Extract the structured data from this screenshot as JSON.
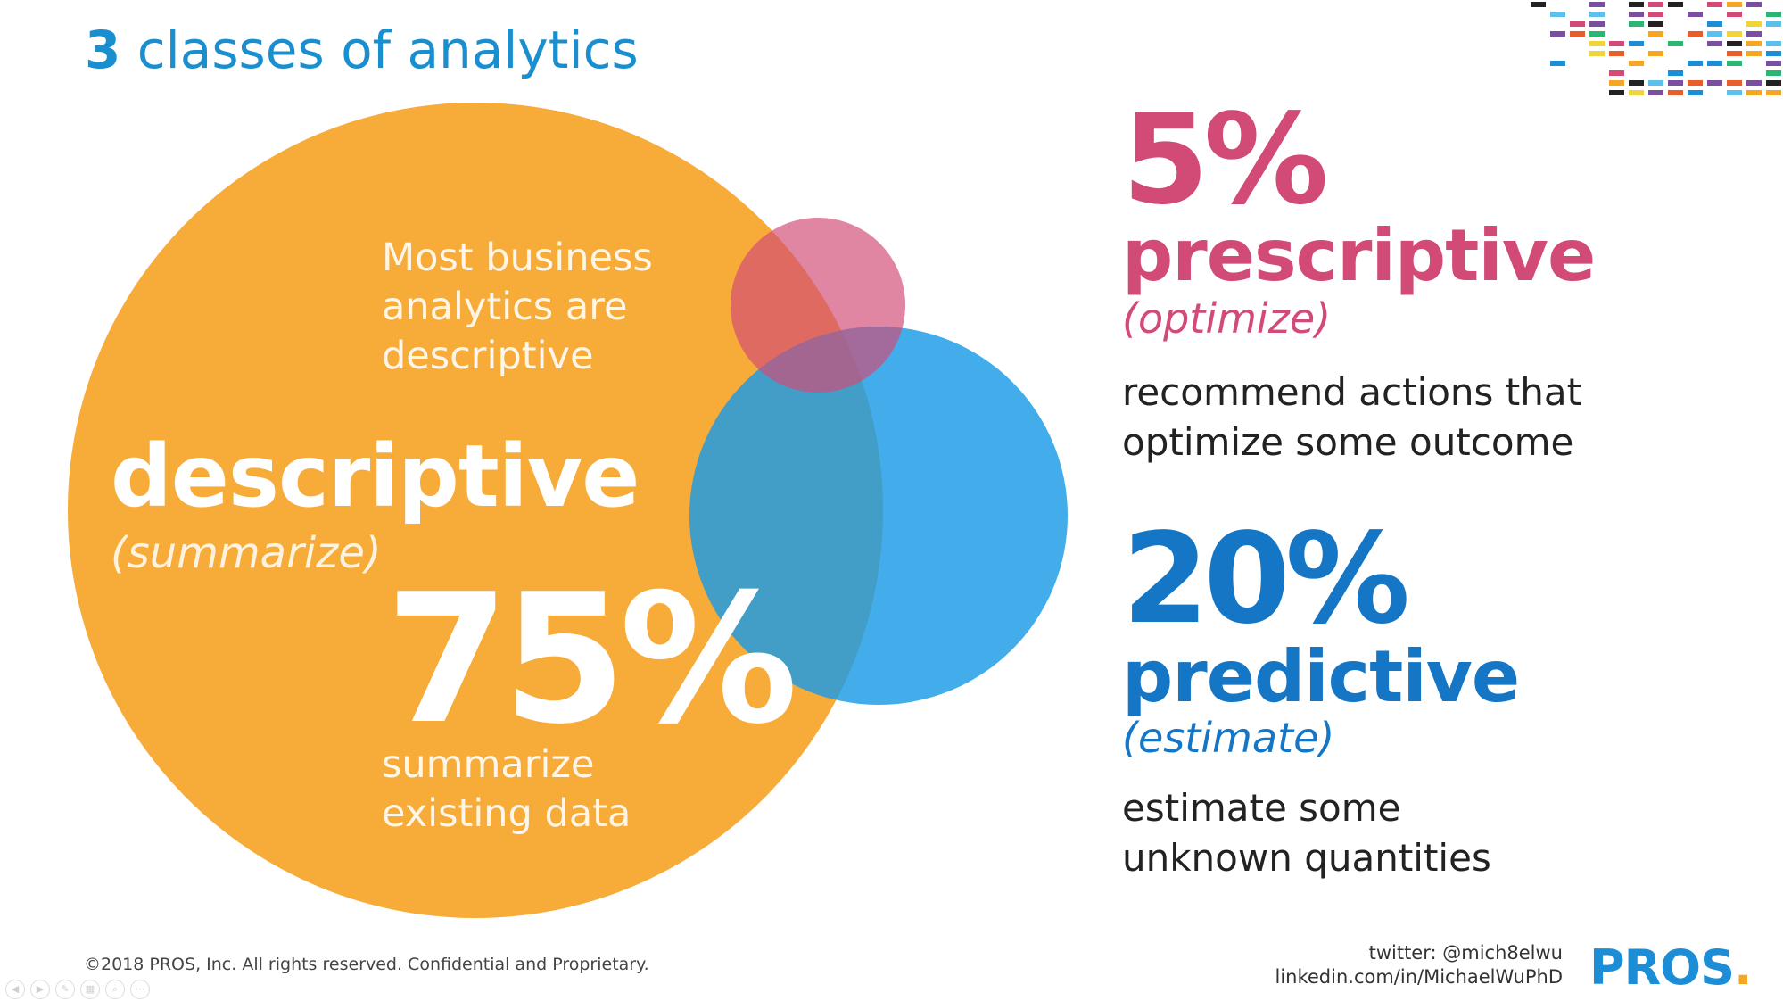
{
  "slide": {
    "title_number": "3",
    "title_rest": " classes of analytics"
  },
  "descriptive": {
    "note": [
      "Most business",
      "analytics are",
      "descriptive"
    ],
    "label": "descriptive",
    "paren": "(summarize)",
    "percent": "75%",
    "sub": [
      "summarize",
      "existing data"
    ]
  },
  "prescriptive": {
    "percent": "5%",
    "label": "prescriptive",
    "paren": "(optimize)",
    "desc": [
      "recommend actions that",
      "optimize some outcome"
    ]
  },
  "predictive": {
    "percent": "20%",
    "label": "predictive",
    "paren": "(estimate)",
    "desc": [
      "estimate some",
      "unknown quantities"
    ]
  },
  "footer": {
    "copyright": "©2018 PROS, Inc. All rights reserved. Confidential and Proprietary.",
    "twitter": "twitter: @mich8elwu",
    "linkedin": "linkedin.com/in/MichaelWuPhD",
    "logo": "PROS",
    "logo_dot": "."
  },
  "colors": {
    "descriptive": "#f7a833",
    "prescriptive": "#d24b76",
    "predictive": "#1a9be6",
    "title": "#1a8fd0"
  },
  "icons": [
    "pixel-mosaic-logo",
    "player-controls"
  ]
}
